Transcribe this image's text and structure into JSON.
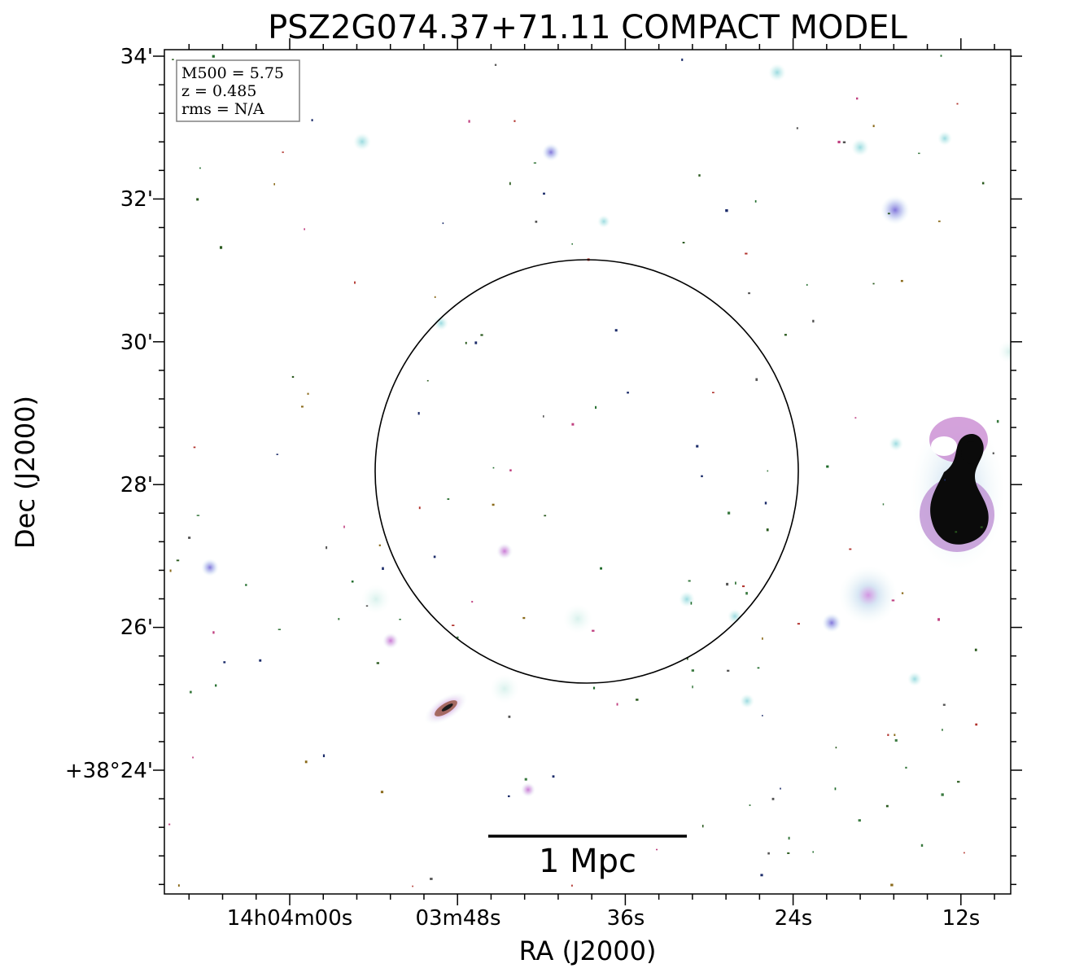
{
  "figure": {
    "title": "PSZ2G074.37+71.11 COMPACT MODEL",
    "xlabel": "RA (J2000)",
    "ylabel": "Dec (J2000)"
  },
  "axes": {
    "x_ticks": [
      "14h04m00s",
      "03m48s",
      "36s",
      "24s",
      "12s"
    ],
    "y_ticks": [
      "34'",
      "32'",
      "30'",
      "28'",
      "26'",
      "+38°24'"
    ]
  },
  "info_box": {
    "mass_line": "M500 = 5.75",
    "redshift_line": "z = 0.485",
    "rms_line": "rms = N/A"
  },
  "scale_bar": {
    "label": "1 Mpc"
  },
  "colors": {
    "frame": "#000000",
    "circle": "#000000",
    "source_core": "#000000",
    "halo_pink": "#d98ad6",
    "halo_cyan": "#a8e4e4",
    "halo_blue": "#9aa8e8",
    "speck_green": "#1f6b2a",
    "speck_red": "#b0302a"
  }
}
